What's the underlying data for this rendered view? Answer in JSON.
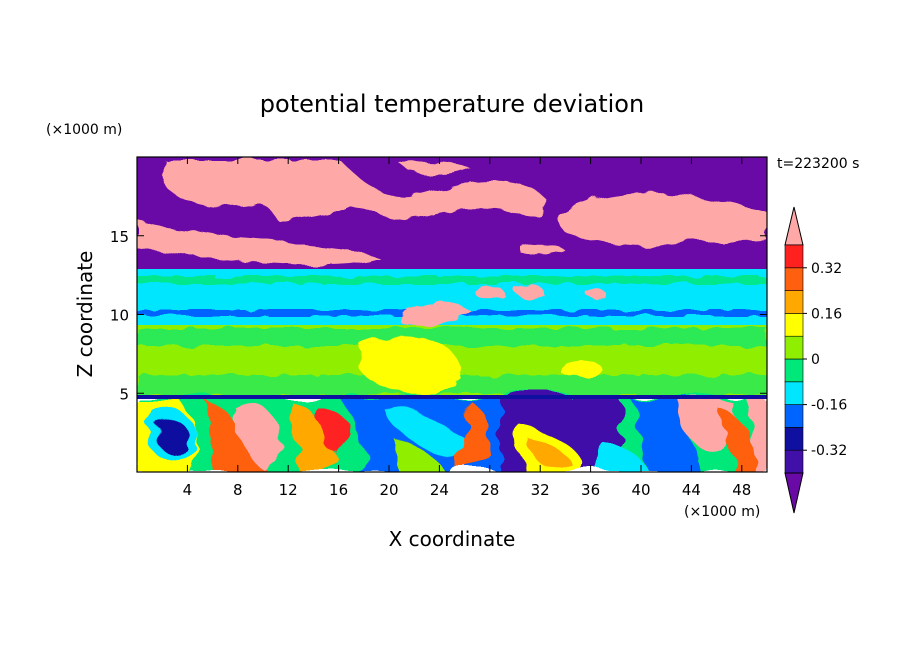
{
  "chart_data": {
    "type": "heatmap",
    "title": "potential temperature deviation",
    "xlabel": "X coordinate",
    "ylabel": "Z coordinate",
    "x_unit": "(×1000 m)",
    "y_unit": "(×1000 m)",
    "time_label": "t=223200 s",
    "xlim": [
      0,
      50
    ],
    "ylim": [
      0,
      20
    ],
    "x_ticks": [
      4,
      8,
      12,
      16,
      20,
      24,
      28,
      32,
      36,
      40,
      44,
      48
    ],
    "y_ticks": [
      5,
      10,
      15
    ],
    "grid": false,
    "colorbar": {
      "levels": [
        -0.4,
        -0.32,
        -0.24,
        -0.16,
        -0.08,
        0,
        0.08,
        0.16,
        0.24,
        0.32,
        0.4
      ],
      "tick_labels": [
        "0.32",
        "0.16",
        "0",
        "-0.16",
        "-0.32"
      ],
      "tick_values": [
        0.32,
        0.16,
        0,
        -0.16,
        -0.32
      ],
      "colors": [
        "#6a0aa6",
        "#4010a8",
        "#1010a0",
        "#0064ff",
        "#00e6ff",
        "#00e87a",
        "#90ee00",
        "#ffff00",
        "#ffa800",
        "#ff6010",
        "#ff2020",
        "#ffa8a8"
      ],
      "extend": "both"
    },
    "layers": [
      {
        "z_range": [
          17,
          20
        ],
        "value": "-0.4 / >0.4 patches"
      },
      {
        "z_range": [
          13,
          17
        ],
        "value": "-0.4 with >0.4 bands"
      },
      {
        "z_range": [
          11,
          13
        ],
        "value": "-0.08 to 0"
      },
      {
        "z_range": [
          9,
          11
        ],
        "value": "-0.16 to -0.08"
      },
      {
        "z_range": [
          5,
          9
        ],
        "value": "0 to 0.16"
      },
      {
        "z_range": [
          0,
          5
        ],
        "value": "mixed -0.4 to >0.4 eddies"
      }
    ]
  }
}
